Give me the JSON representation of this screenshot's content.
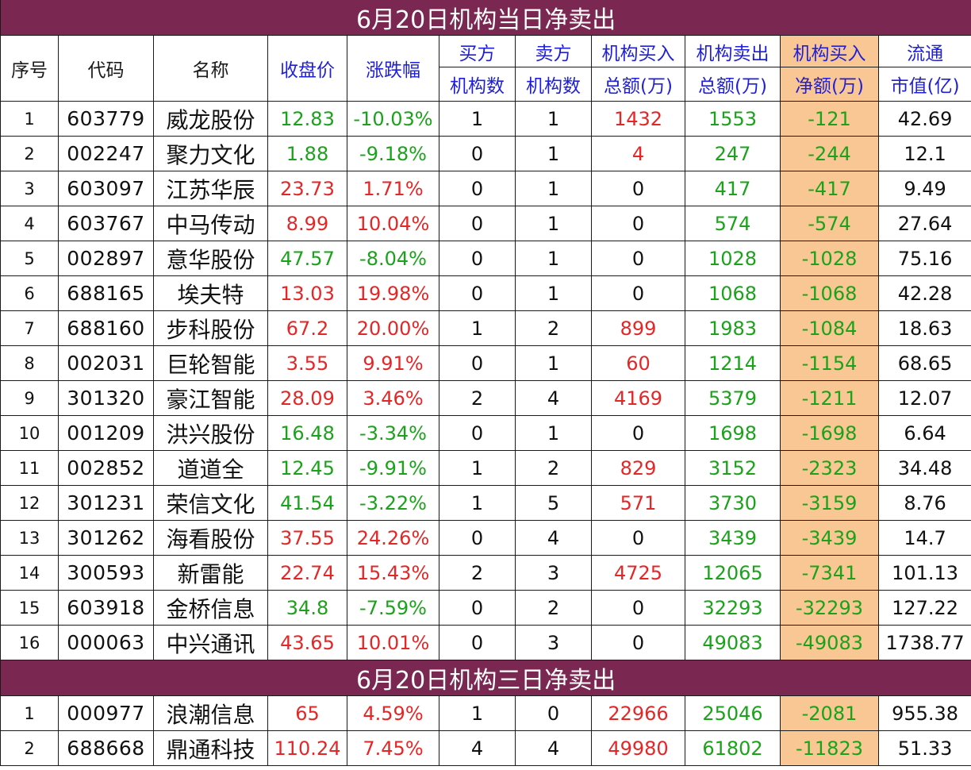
{
  "titles": {
    "daily": "6月20日机构当日净卖出",
    "three_day": "6月20日机构三日净卖出"
  },
  "headers": {
    "seq": "序号",
    "code": "代码",
    "name": "名称",
    "close": "收盘价",
    "change": "涨跌幅",
    "buy_top": "买方",
    "buy_bottom": "机构数",
    "sell_top": "卖方",
    "sell_bottom": "机构数",
    "inst_buy_top": "机构买入",
    "inst_buy_bottom": "总额(万)",
    "inst_sell_top": "机构卖出",
    "inst_sell_bottom": "总额(万)",
    "net_top": "机构买入",
    "net_bottom": "净额(万)",
    "cap_top": "流通",
    "cap_bottom": "市值(亿)"
  },
  "colors": {
    "banner": "#7a2752",
    "highlight": "#f9c793",
    "up": "#e52626",
    "down": "#1aa31a",
    "header_accent": "#1f1fd8"
  },
  "daily_rows": [
    {
      "seq": "1",
      "code": "603779",
      "name": "威龙股份",
      "close": "12.83",
      "change": "-10.03%",
      "buy": "1",
      "sell": "1",
      "inst_buy": "1432",
      "inst_sell": "1553",
      "net": "-121",
      "cap": "42.69",
      "trend": "down"
    },
    {
      "seq": "2",
      "code": "002247",
      "name": "聚力文化",
      "close": "1.88",
      "change": "-9.18%",
      "buy": "0",
      "sell": "1",
      "inst_buy": "4",
      "inst_sell": "247",
      "net": "-244",
      "cap": "12.1",
      "trend": "down"
    },
    {
      "seq": "3",
      "code": "603097",
      "name": "江苏华辰",
      "close": "23.73",
      "change": "1.71%",
      "buy": "0",
      "sell": "1",
      "inst_buy": "0",
      "inst_sell": "417",
      "net": "-417",
      "cap": "9.49",
      "trend": "up"
    },
    {
      "seq": "4",
      "code": "603767",
      "name": "中马传动",
      "close": "8.99",
      "change": "10.04%",
      "buy": "0",
      "sell": "1",
      "inst_buy": "0",
      "inst_sell": "574",
      "net": "-574",
      "cap": "27.64",
      "trend": "up"
    },
    {
      "seq": "5",
      "code": "002897",
      "name": "意华股份",
      "close": "47.57",
      "change": "-8.04%",
      "buy": "0",
      "sell": "1",
      "inst_buy": "0",
      "inst_sell": "1028",
      "net": "-1028",
      "cap": "75.16",
      "trend": "down"
    },
    {
      "seq": "6",
      "code": "688165",
      "name": "埃夫特",
      "close": "13.03",
      "change": "19.98%",
      "buy": "0",
      "sell": "1",
      "inst_buy": "0",
      "inst_sell": "1068",
      "net": "-1068",
      "cap": "42.28",
      "trend": "up"
    },
    {
      "seq": "7",
      "code": "688160",
      "name": "步科股份",
      "close": "67.2",
      "change": "20.00%",
      "buy": "1",
      "sell": "2",
      "inst_buy": "899",
      "inst_sell": "1983",
      "net": "-1084",
      "cap": "18.63",
      "trend": "up"
    },
    {
      "seq": "8",
      "code": "002031",
      "name": "巨轮智能",
      "close": "3.55",
      "change": "9.91%",
      "buy": "0",
      "sell": "1",
      "inst_buy": "60",
      "inst_sell": "1214",
      "net": "-1154",
      "cap": "68.65",
      "trend": "up"
    },
    {
      "seq": "9",
      "code": "301320",
      "name": "豪江智能",
      "close": "28.09",
      "change": "3.46%",
      "buy": "2",
      "sell": "4",
      "inst_buy": "4169",
      "inst_sell": "5379",
      "net": "-1211",
      "cap": "12.07",
      "trend": "up"
    },
    {
      "seq": "10",
      "code": "001209",
      "name": "洪兴股份",
      "close": "16.48",
      "change": "-3.34%",
      "buy": "0",
      "sell": "1",
      "inst_buy": "0",
      "inst_sell": "1698",
      "net": "-1698",
      "cap": "6.64",
      "trend": "down"
    },
    {
      "seq": "11",
      "code": "002852",
      "name": "道道全",
      "close": "12.45",
      "change": "-9.91%",
      "buy": "1",
      "sell": "2",
      "inst_buy": "829",
      "inst_sell": "3152",
      "net": "-2323",
      "cap": "34.48",
      "trend": "down"
    },
    {
      "seq": "12",
      "code": "301231",
      "name": "荣信文化",
      "close": "41.54",
      "change": "-3.22%",
      "buy": "1",
      "sell": "5",
      "inst_buy": "571",
      "inst_sell": "3730",
      "net": "-3159",
      "cap": "8.76",
      "trend": "down"
    },
    {
      "seq": "13",
      "code": "301262",
      "name": "海看股份",
      "close": "37.55",
      "change": "24.26%",
      "buy": "0",
      "sell": "4",
      "inst_buy": "0",
      "inst_sell": "3439",
      "net": "-3439",
      "cap": "14.7",
      "trend": "up"
    },
    {
      "seq": "14",
      "code": "300593",
      "name": "新雷能",
      "close": "22.74",
      "change": "15.43%",
      "buy": "2",
      "sell": "3",
      "inst_buy": "4725",
      "inst_sell": "12065",
      "net": "-7341",
      "cap": "101.13",
      "trend": "up"
    },
    {
      "seq": "15",
      "code": "603918",
      "name": "金桥信息",
      "close": "34.8",
      "change": "-7.59%",
      "buy": "0",
      "sell": "2",
      "inst_buy": "0",
      "inst_sell": "32293",
      "net": "-32293",
      "cap": "127.22",
      "trend": "down"
    },
    {
      "seq": "16",
      "code": "000063",
      "name": "中兴通讯",
      "close": "43.65",
      "change": "10.01%",
      "buy": "0",
      "sell": "3",
      "inst_buy": "0",
      "inst_sell": "49083",
      "net": "-49083",
      "cap": "1738.77",
      "trend": "up"
    }
  ],
  "three_day_rows": [
    {
      "seq": "1",
      "code": "000977",
      "name": "浪潮信息",
      "close": "65",
      "change": "4.59%",
      "buy": "1",
      "sell": "0",
      "inst_buy": "22966",
      "inst_sell": "25046",
      "net": "-2081",
      "cap": "955.38",
      "trend": "up"
    },
    {
      "seq": "2",
      "code": "688668",
      "name": "鼎通科技",
      "close": "110.24",
      "change": "7.45%",
      "buy": "4",
      "sell": "4",
      "inst_buy": "49980",
      "inst_sell": "61802",
      "net": "-11823",
      "cap": "51.33",
      "trend": "up"
    }
  ]
}
